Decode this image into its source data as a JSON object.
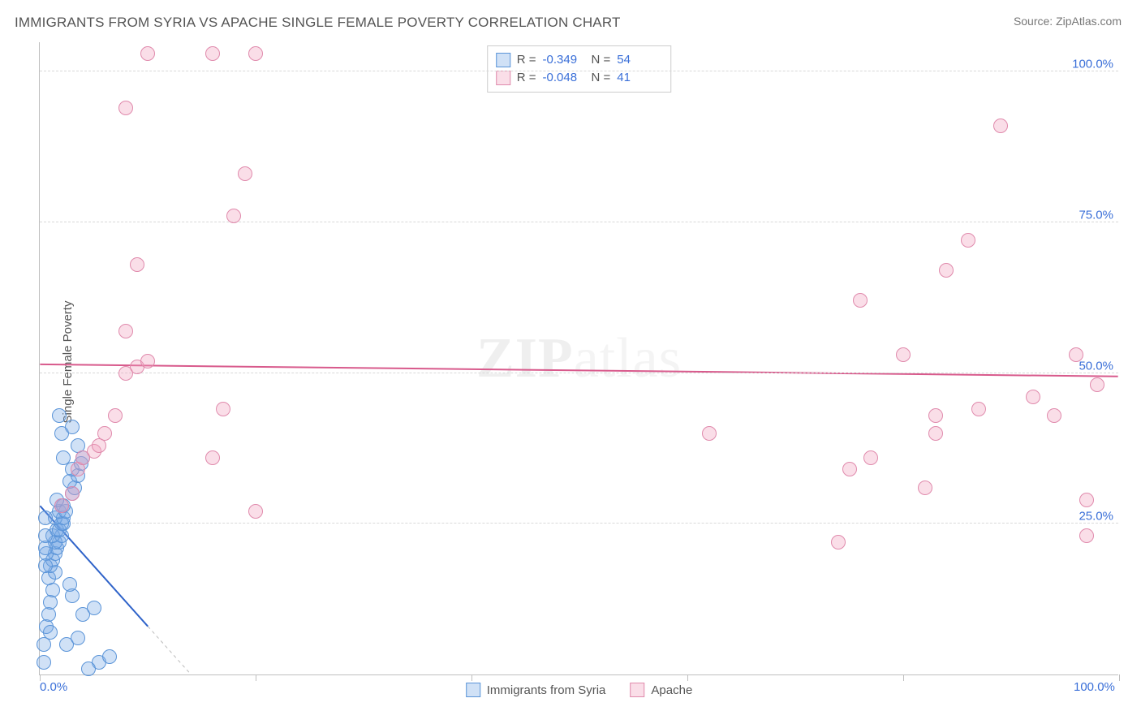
{
  "title": "IMMIGRANTS FROM SYRIA VS APACHE SINGLE FEMALE POVERTY CORRELATION CHART",
  "source": "Source: ZipAtlas.com",
  "ylabel": "Single Female Poverty",
  "watermark_zip": "ZIP",
  "watermark_atlas": "atlas",
  "chart": {
    "type": "scatter",
    "xlim": [
      0,
      100
    ],
    "ylim": [
      0,
      105
    ],
    "xtick_positions": [
      0,
      20,
      40,
      60,
      80,
      100
    ],
    "xtick_labels_shown": {
      "0": "0.0%",
      "100": "100.0%"
    },
    "gridlines_y": [
      25,
      50,
      75,
      100
    ],
    "ytick_labels": {
      "25": "25.0%",
      "50": "50.0%",
      "75": "75.0%",
      "100": "100.0%"
    },
    "background_color": "#ffffff",
    "grid_color": "#d8d8d8",
    "axis_color": "#bfbfbf",
    "tick_label_color": "#3a6fd8",
    "marker_radius": 9,
    "marker_stroke_width": 1.5,
    "series": [
      {
        "name": "Immigrants from Syria",
        "fill": "rgba(120,170,230,0.35)",
        "stroke": "#5a94d8",
        "R": "-0.349",
        "N": "54",
        "trend": {
          "x1": 0,
          "y1": 28,
          "x2": 10,
          "y2": 8,
          "dash_ext_x": 15,
          "dash_ext_y": -2,
          "color": "#2f63c9",
          "width": 2
        },
        "points": [
          [
            0.4,
            2
          ],
          [
            0.4,
            5
          ],
          [
            0.6,
            8
          ],
          [
            0.8,
            10
          ],
          [
            1.0,
            12
          ],
          [
            1.2,
            14
          ],
          [
            0.8,
            16
          ],
          [
            1.4,
            17
          ],
          [
            1.0,
            18
          ],
          [
            1.2,
            19
          ],
          [
            1.4,
            20
          ],
          [
            0.6,
            20
          ],
          [
            1.6,
            21
          ],
          [
            1.8,
            22
          ],
          [
            1.4,
            22
          ],
          [
            2.0,
            23
          ],
          [
            1.2,
            23
          ],
          [
            1.6,
            24
          ],
          [
            1.8,
            24
          ],
          [
            2.2,
            25
          ],
          [
            2.0,
            25
          ],
          [
            1.4,
            26
          ],
          [
            2.2,
            26
          ],
          [
            1.8,
            27
          ],
          [
            2.4,
            27
          ],
          [
            2.0,
            28
          ],
          [
            2.2,
            28
          ],
          [
            1.6,
            29
          ],
          [
            3.0,
            30
          ],
          [
            3.2,
            31
          ],
          [
            2.8,
            32
          ],
          [
            3.5,
            33
          ],
          [
            3.0,
            34
          ],
          [
            3.8,
            35
          ],
          [
            2.2,
            36
          ],
          [
            4.0,
            36
          ],
          [
            3.5,
            38
          ],
          [
            2.0,
            40
          ],
          [
            3.0,
            41
          ],
          [
            1.8,
            43
          ],
          [
            5.5,
            2
          ],
          [
            6.5,
            3
          ],
          [
            4.5,
            1
          ],
          [
            2.5,
            5
          ],
          [
            3.5,
            6
          ],
          [
            1.0,
            7
          ],
          [
            4.0,
            10
          ],
          [
            5.0,
            11
          ],
          [
            3.0,
            13
          ],
          [
            2.8,
            15
          ],
          [
            0.5,
            18
          ],
          [
            0.5,
            21
          ],
          [
            0.5,
            23
          ],
          [
            0.5,
            26
          ]
        ]
      },
      {
        "name": "Apache",
        "fill": "rgba(240,160,190,0.35)",
        "stroke": "#e08aac",
        "R": "-0.048",
        "N": "41",
        "trend": {
          "x1": 0,
          "y1": 51.5,
          "x2": 100,
          "y2": 49.5,
          "color": "#d85a8c",
          "width": 2
        },
        "points": [
          [
            2,
            28
          ],
          [
            3,
            30
          ],
          [
            3.5,
            34
          ],
          [
            4,
            36
          ],
          [
            5,
            37
          ],
          [
            5.5,
            38
          ],
          [
            6,
            40
          ],
          [
            7,
            43
          ],
          [
            8,
            50
          ],
          [
            9,
            51
          ],
          [
            10,
            52
          ],
          [
            8,
            57
          ],
          [
            9,
            68
          ],
          [
            16,
            36
          ],
          [
            17,
            44
          ],
          [
            18,
            76
          ],
          [
            19,
            83
          ],
          [
            20,
            27
          ],
          [
            10,
            103
          ],
          [
            16,
            103
          ],
          [
            20,
            103
          ],
          [
            8,
            94
          ],
          [
            62,
            40
          ],
          [
            74,
            22
          ],
          [
            75,
            34
          ],
          [
            77,
            36
          ],
          [
            76,
            62
          ],
          [
            80,
            53
          ],
          [
            82,
            31
          ],
          [
            83,
            40
          ],
          [
            83,
            43
          ],
          [
            84,
            67
          ],
          [
            86,
            72
          ],
          [
            87,
            44
          ],
          [
            89,
            91
          ],
          [
            92,
            46
          ],
          [
            94,
            43
          ],
          [
            96,
            53
          ],
          [
            97,
            23
          ],
          [
            98,
            48
          ],
          [
            97,
            29
          ]
        ]
      }
    ]
  },
  "legend_bottom": [
    {
      "label": "Immigrants from Syria",
      "fill": "rgba(120,170,230,0.35)",
      "stroke": "#5a94d8"
    },
    {
      "label": "Apache",
      "fill": "rgba(240,160,190,0.35)",
      "stroke": "#e08aac"
    }
  ]
}
